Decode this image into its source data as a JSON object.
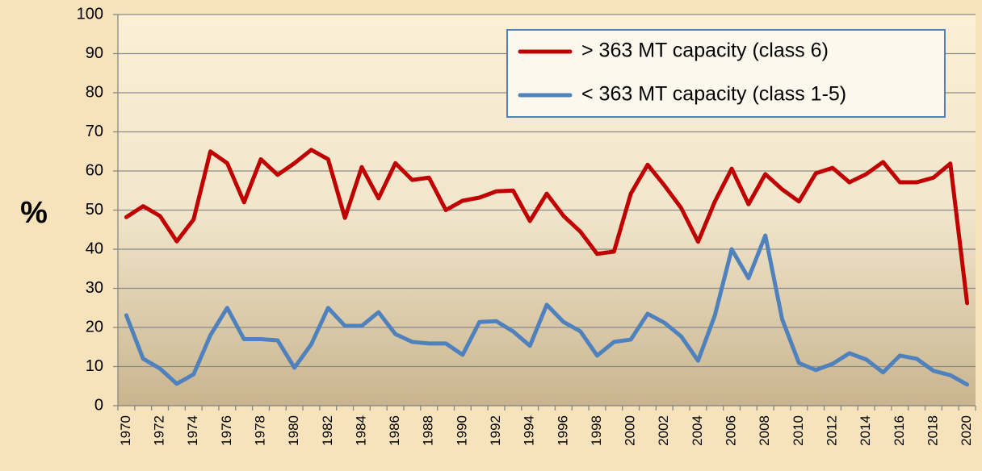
{
  "chart_data": {
    "type": "line",
    "y_label": "%",
    "categories": [
      "1970",
      null,
      "1972",
      null,
      "1974",
      null,
      "1976",
      null,
      "1978",
      null,
      "1980",
      null,
      "1982",
      null,
      "1984",
      null,
      "1986",
      null,
      "1988",
      null,
      "1990",
      null,
      "1992",
      null,
      "1994",
      null,
      "1996",
      null,
      "1998",
      null,
      "2000",
      null,
      "2002",
      null,
      "2004",
      null,
      "2006",
      null,
      "2008",
      null,
      "2010",
      null,
      "2012",
      null,
      "2014",
      null,
      "2016",
      null,
      "2018",
      null,
      "2020"
    ],
    "series": [
      {
        "name": "> 363 MT capacity (class 6)",
        "color": "#c00000",
        "values": [
          48.2,
          51,
          48.5,
          42,
          47.6,
          65,
          62,
          52,
          63,
          59,
          62,
          65.4,
          63,
          48,
          61,
          53,
          62,
          57.7,
          58.3,
          50,
          52.4,
          53.2,
          54.8,
          55,
          47.2,
          54.2,
          48.5,
          44.5,
          38.8,
          39.4,
          54.2,
          61.6,
          56.3,
          50.5,
          41.9,
          52.2,
          60.6,
          51.5,
          59.2,
          55.3,
          52.2,
          59.4,
          60.8,
          57.1,
          59.2,
          62.3,
          57.1,
          57.1,
          58.3,
          61.9,
          26.2
        ]
      },
      {
        "name": "< 363 MT capacity (class 1-5)",
        "color": "#4f81bd",
        "values": [
          23.1,
          12,
          9.5,
          5.6,
          8,
          18,
          25,
          17,
          17,
          16.7,
          9.7,
          15.7,
          25,
          20.4,
          20.4,
          23.9,
          18.3,
          16.3,
          15.9,
          15.9,
          13,
          21.4,
          21.6,
          19,
          15.3,
          25.8,
          21.4,
          19,
          12.8,
          16.3,
          16.9,
          23.5,
          21.2,
          17.7,
          11.5,
          23.1,
          40,
          32.6,
          43.5,
          22.1,
          10.9,
          9.1,
          10.7,
          13.4,
          11.8,
          8.5,
          12.8,
          12,
          8.9,
          7.8,
          5.4
        ]
      }
    ],
    "ylim": [
      0,
      100
    ],
    "yticks": [
      0,
      10,
      20,
      30,
      40,
      50,
      60,
      70,
      80,
      90,
      100
    ],
    "grid": true,
    "legend": "upper right"
  }
}
